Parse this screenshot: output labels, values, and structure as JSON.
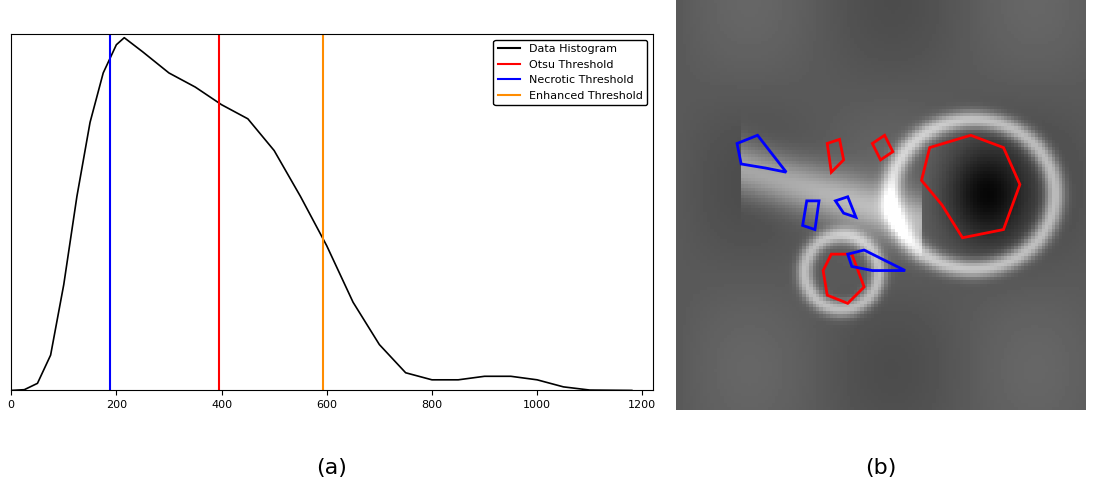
{
  "chart_data": [
    {
      "type": "line",
      "caption": "(a)",
      "x": [
        0,
        25,
        50,
        75,
        100,
        125,
        150,
        175,
        200,
        215,
        250,
        300,
        350,
        400,
        450,
        500,
        550,
        600,
        650,
        700,
        750,
        800,
        850,
        900,
        950,
        1000,
        1050,
        1100,
        1180
      ],
      "series": [
        {
          "name": "Data Histogram",
          "type": "line",
          "color": "#000000",
          "values": [
            0,
            0.002,
            0.02,
            0.1,
            0.3,
            0.55,
            0.76,
            0.9,
            0.98,
            1.0,
            0.96,
            0.9,
            0.86,
            0.81,
            0.77,
            0.68,
            0.55,
            0.41,
            0.25,
            0.13,
            0.05,
            0.03,
            0.03,
            0.04,
            0.04,
            0.03,
            0.01,
            0.001,
            0
          ]
        },
        {
          "name": "Otsu Threshold",
          "type": "vline",
          "color": "#ff0000",
          "value": 395
        },
        {
          "name": "Necrotic Threshold",
          "type": "vline",
          "color": "#0000ff",
          "value": 188
        },
        {
          "name": "Enhanced Threshold",
          "type": "vline",
          "color": "#ff8c00",
          "value": 592
        }
      ],
      "xlim": [
        0,
        1220
      ],
      "xticks": [
        0,
        200,
        400,
        600,
        800,
        1000,
        1200
      ],
      "ylim": [
        0,
        1.01
      ],
      "yticks": [],
      "tick_labels": "x",
      "legend": "upper right",
      "grid": false
    },
    {
      "type": "image",
      "caption": "(b)",
      "colors": [
        "#ff0000",
        "#0000ff"
      ]
    }
  ]
}
